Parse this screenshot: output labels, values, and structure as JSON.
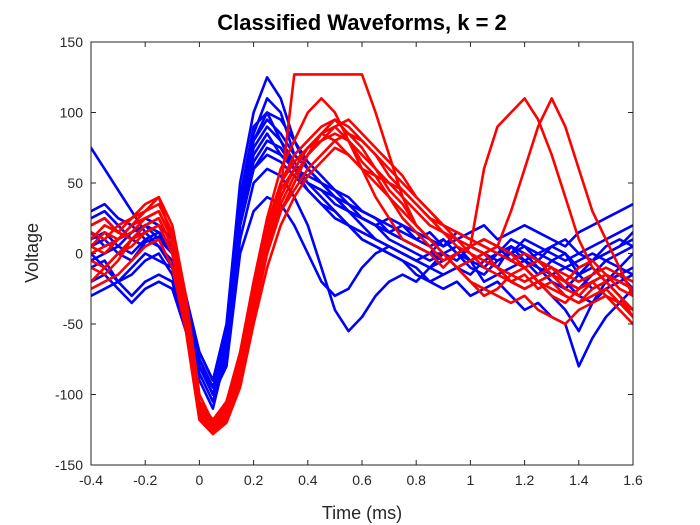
{
  "chart_data": {
    "type": "line",
    "title": "Classified Waveforms, k = 2",
    "xlabel": "Time (ms)",
    "ylabel": "Voltage",
    "xlim": [
      -0.4,
      1.6
    ],
    "ylim": [
      -150,
      150
    ],
    "xticks": [
      -0.4,
      -0.2,
      0,
      0.2,
      0.4,
      0.6,
      0.8,
      1,
      1.2,
      1.4,
      1.6
    ],
    "xtick_labels": [
      "-0.4",
      "-0.2",
      "0",
      "0.2",
      "0.4",
      "0.6",
      "0.8",
      "1",
      "1.2",
      "1.4",
      "1.6"
    ],
    "yticks": [
      -150,
      -100,
      -50,
      0,
      50,
      100,
      150
    ],
    "ytick_labels": [
      "-150",
      "-100",
      "-50",
      "0",
      "50",
      "100",
      "150"
    ],
    "grid": false,
    "x": [
      -0.4,
      -0.35,
      -0.3,
      -0.25,
      -0.2,
      -0.15,
      -0.1,
      -0.05,
      0,
      0.05,
      0.1,
      0.15,
      0.2,
      0.25,
      0.3,
      0.35,
      0.4,
      0.45,
      0.5,
      0.55,
      0.6,
      0.65,
      0.7,
      0.75,
      0.8,
      0.85,
      0.9,
      0.95,
      1.0,
      1.05,
      1.1,
      1.15,
      1.2,
      1.25,
      1.3,
      1.35,
      1.4,
      1.45,
      1.5,
      1.55,
      1.6
    ],
    "series": [
      {
        "color": "#0000ff",
        "values": [
          5,
          10,
          0,
          -5,
          8,
          12,
          0,
          -40,
          -80,
          -100,
          -60,
          40,
          90,
          100,
          80,
          60,
          50,
          45,
          40,
          30,
          25,
          20,
          15,
          10,
          5,
          0,
          0,
          -5,
          5,
          0,
          -10,
          5,
          0,
          -5,
          5,
          0,
          -10,
          -5,
          0,
          5,
          10
        ]
      },
      {
        "color": "#0000ff",
        "values": [
          75,
          60,
          45,
          30,
          15,
          5,
          -10,
          -50,
          -90,
          -110,
          -70,
          30,
          85,
          110,
          100,
          70,
          60,
          50,
          45,
          35,
          25,
          20,
          10,
          5,
          0,
          -5,
          0,
          5,
          -5,
          -10,
          0,
          10,
          5,
          0,
          -5,
          -10,
          -15,
          -5,
          0,
          5,
          15
        ]
      },
      {
        "color": "#0000ff",
        "values": [
          -10,
          -5,
          -20,
          -15,
          -5,
          0,
          -15,
          -50,
          -70,
          -90,
          -50,
          50,
          100,
          125,
          110,
          80,
          60,
          50,
          40,
          30,
          20,
          10,
          5,
          0,
          -5,
          -10,
          -5,
          0,
          -10,
          -15,
          -5,
          0,
          5,
          -5,
          -10,
          -20,
          -25,
          -15,
          -5,
          0,
          5
        ]
      },
      {
        "color": "#0000ff",
        "values": [
          20,
          25,
          15,
          10,
          20,
          15,
          5,
          -30,
          -75,
          -95,
          -60,
          30,
          70,
          85,
          70,
          60,
          55,
          50,
          40,
          30,
          25,
          20,
          15,
          20,
          10,
          5,
          10,
          0,
          5,
          0,
          -5,
          0,
          10,
          5,
          0,
          -5,
          0,
          5,
          10,
          15,
          20
        ]
      },
      {
        "color": "#0000ff",
        "values": [
          -30,
          -25,
          -20,
          -30,
          -20,
          -15,
          -20,
          -55,
          -85,
          -105,
          -70,
          20,
          60,
          70,
          65,
          55,
          45,
          35,
          30,
          20,
          15,
          10,
          5,
          0,
          -5,
          -10,
          -15,
          -10,
          -5,
          -20,
          -15,
          -10,
          -5,
          -10,
          -20,
          -25,
          -15,
          -10,
          -20,
          -15,
          -10
        ]
      },
      {
        "color": "#0000ff",
        "values": [
          0,
          -10,
          -20,
          -10,
          0,
          -5,
          -10,
          -50,
          -80,
          -100,
          -80,
          0,
          30,
          40,
          35,
          20,
          0,
          -20,
          -30,
          -25,
          -10,
          0,
          5,
          0,
          -5,
          0,
          10,
          0,
          -5,
          0,
          5,
          -5,
          -10,
          -20,
          -30,
          -40,
          -55,
          -35,
          -20,
          -10,
          0
        ]
      },
      {
        "color": "#0000ff",
        "values": [
          10,
          15,
          5,
          0,
          10,
          5,
          -5,
          -45,
          -80,
          -100,
          -75,
          10,
          50,
          60,
          55,
          40,
          20,
          -10,
          -40,
          -55,
          -45,
          -30,
          -20,
          -15,
          -20,
          -10,
          0,
          -10,
          -15,
          -5,
          0,
          5,
          -5,
          -15,
          -5,
          0,
          -15,
          -25,
          -20,
          -15,
          -25
        ]
      },
      {
        "color": "#0000ff",
        "values": [
          30,
          35,
          25,
          20,
          25,
          20,
          10,
          -30,
          -70,
          -90,
          -55,
          40,
          80,
          95,
          85,
          70,
          60,
          50,
          40,
          35,
          30,
          25,
          20,
          15,
          10,
          15,
          5,
          10,
          15,
          20,
          10,
          15,
          20,
          15,
          10,
          5,
          15,
          20,
          25,
          30,
          35
        ]
      },
      {
        "color": "#0000ff",
        "values": [
          -20,
          -15,
          -25,
          -35,
          -25,
          -20,
          -25,
          -55,
          -80,
          -95,
          -65,
          25,
          65,
          80,
          75,
          60,
          45,
          35,
          25,
          20,
          10,
          5,
          0,
          -5,
          -15,
          -20,
          -25,
          -20,
          -30,
          -25,
          -20,
          -30,
          -40,
          -35,
          -45,
          -50,
          -80,
          -60,
          -45,
          -35,
          -25
        ]
      },
      {
        "color": "#0000ff",
        "values": [
          15,
          5,
          10,
          20,
          10,
          15,
          0,
          -40,
          -75,
          -95,
          -65,
          30,
          75,
          90,
          80,
          65,
          50,
          45,
          35,
          30,
          25,
          20,
          25,
          20,
          15,
          10,
          5,
          15,
          10,
          5,
          0,
          -5,
          0,
          -10,
          -15,
          -10,
          -5,
          0,
          -5,
          -10,
          -15
        ]
      },
      {
        "color": "#0000ff",
        "values": [
          -5,
          0,
          5,
          15,
          20,
          10,
          0,
          -40,
          -75,
          -95,
          -70,
          20,
          60,
          75,
          70,
          60,
          50,
          40,
          30,
          20,
          10,
          5,
          0,
          -5,
          -10,
          -20,
          -15,
          -10,
          -5,
          0,
          -10,
          -20,
          -25,
          -20,
          -15,
          -20,
          -30,
          -35,
          -25,
          -20,
          -15
        ]
      },
      {
        "color": "#0000ff",
        "values": [
          25,
          30,
          20,
          10,
          5,
          10,
          5,
          -35,
          -70,
          -90,
          -60,
          35,
          80,
          100,
          95,
          80,
          65,
          55,
          45,
          40,
          30,
          25,
          15,
          10,
          5,
          0,
          -5,
          0,
          5,
          10,
          5,
          0,
          -5,
          0,
          5,
          10,
          0,
          -5,
          5,
          10,
          5
        ]
      },
      {
        "color": "#ff0000",
        "values": [
          5,
          0,
          10,
          20,
          30,
          40,
          10,
          -40,
          -110,
          -125,
          -115,
          -80,
          -30,
          20,
          50,
          70,
          80,
          90,
          95,
          90,
          80,
          70,
          60,
          50,
          40,
          30,
          20,
          15,
          10,
          5,
          0,
          -5,
          -10,
          -5,
          -15,
          -20,
          -10,
          -5,
          -15,
          -20,
          -25
        ]
      },
      {
        "color": "#ff0000",
        "values": [
          -10,
          -15,
          -5,
          10,
          20,
          25,
          5,
          -45,
          -115,
          -128,
          -118,
          -90,
          -40,
          0,
          30,
          50,
          70,
          85,
          95,
          85,
          75,
          60,
          45,
          35,
          20,
          10,
          0,
          -10,
          -5,
          0,
          -10,
          -20,
          -15,
          -25,
          -20,
          -30,
          -35,
          -25,
          -20,
          -30,
          -40
        ]
      },
      {
        "color": "#ff0000",
        "values": [
          10,
          20,
          15,
          25,
          30,
          35,
          15,
          -35,
          -105,
          -120,
          -105,
          -70,
          -20,
          25,
          60,
          80,
          100,
          110,
          100,
          80,
          60,
          40,
          25,
          10,
          5,
          0,
          -10,
          0,
          5,
          10,
          5,
          0,
          -10,
          -20,
          -15,
          -25,
          -30,
          -20,
          -15,
          -25,
          -30
        ]
      },
      {
        "color": "#ff0000",
        "values": [
          0,
          5,
          10,
          15,
          25,
          30,
          10,
          -40,
          -110,
          -125,
          -112,
          -85,
          -35,
          15,
          45,
          127,
          127,
          127,
          127,
          127,
          127,
          100,
          70,
          40,
          20,
          10,
          0,
          -10,
          -20,
          -30,
          -25,
          -15,
          -10,
          -20,
          -25,
          -30,
          -35,
          -30,
          -25,
          -35,
          -40
        ]
      },
      {
        "color": "#ff0000",
        "values": [
          -20,
          -10,
          0,
          10,
          15,
          20,
          0,
          -50,
          -115,
          -125,
          -110,
          -75,
          -25,
          10,
          40,
          60,
          75,
          85,
          90,
          80,
          65,
          55,
          40,
          25,
          15,
          5,
          -5,
          0,
          5,
          60,
          90,
          100,
          110,
          95,
          70,
          40,
          10,
          -10,
          -20,
          -30,
          -45
        ]
      },
      {
        "color": "#ff0000",
        "values": [
          15,
          10,
          20,
          25,
          35,
          40,
          20,
          -30,
          -100,
          -120,
          -108,
          -80,
          -30,
          20,
          50,
          65,
          75,
          80,
          85,
          80,
          70,
          60,
          50,
          40,
          30,
          20,
          15,
          10,
          5,
          0,
          5,
          30,
          60,
          90,
          110,
          90,
          60,
          30,
          10,
          -10,
          -30
        ]
      },
      {
        "color": "#ff0000",
        "values": [
          -25,
          -20,
          -15,
          -5,
          5,
          10,
          -10,
          -55,
          -118,
          -128,
          -120,
          -95,
          -50,
          -10,
          20,
          40,
          55,
          65,
          75,
          70,
          60,
          50,
          40,
          30,
          20,
          10,
          0,
          -10,
          -20,
          -25,
          -30,
          -35,
          -30,
          -40,
          -45,
          -50,
          -40,
          -35,
          -30,
          -40,
          -50
        ]
      },
      {
        "color": "#ff0000",
        "values": [
          5,
          15,
          10,
          20,
          25,
          30,
          10,
          -40,
          -108,
          -122,
          -110,
          -85,
          -40,
          5,
          35,
          55,
          70,
          80,
          90,
          95,
          85,
          75,
          65,
          55,
          40,
          30,
          20,
          10,
          0,
          -5,
          -10,
          -15,
          -20,
          -15,
          -10,
          -20,
          -25,
          -20,
          -15,
          -20,
          -25
        ]
      },
      {
        "color": "#ff0000",
        "values": [
          -5,
          -10,
          0,
          5,
          15,
          20,
          0,
          -45,
          -112,
          -126,
          -116,
          -88,
          -45,
          0,
          30,
          45,
          60,
          70,
          80,
          85,
          80,
          70,
          55,
          45,
          35,
          25,
          15,
          5,
          0,
          -10,
          -15,
          -20,
          -25,
          -20,
          -30,
          -35,
          -25,
          -20,
          -30,
          -35,
          -45
        ]
      },
      {
        "color": "#ff0000",
        "values": [
          20,
          25,
          15,
          10,
          20,
          25,
          5,
          -40,
          -105,
          -118,
          -105,
          -75,
          -25,
          15,
          45,
          60,
          75,
          85,
          80,
          70,
          60,
          55,
          50,
          45,
          35,
          25,
          20,
          15,
          10,
          5,
          0,
          -5,
          0,
          -5,
          -10,
          -15,
          -20,
          -15,
          -10,
          -15,
          -20
        ]
      }
    ]
  }
}
